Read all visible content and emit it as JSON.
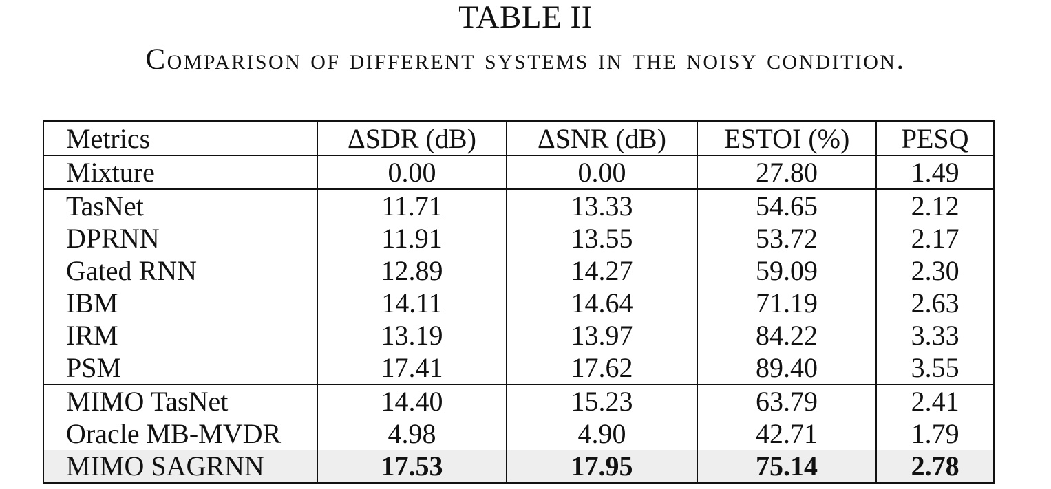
{
  "table_title": "TABLE II",
  "caption": "Comparison of different systems in the noisy condition.",
  "table": {
    "headers": [
      "Metrics",
      "ΔSDR (dB)",
      "ΔSNR (dB)",
      "ESTOI (%)",
      "PESQ"
    ],
    "rows": [
      {
        "name": "Mixture",
        "values": [
          "0.00",
          "0.00",
          "27.80",
          "1.49"
        ]
      },
      {
        "name": "TasNet",
        "values": [
          "11.71",
          "13.33",
          "54.65",
          "2.12"
        ]
      },
      {
        "name": "DPRNN",
        "values": [
          "11.91",
          "13.55",
          "53.72",
          "2.17"
        ]
      },
      {
        "name": "Gated RNN",
        "values": [
          "12.89",
          "14.27",
          "59.09",
          "2.30"
        ]
      },
      {
        "name": "IBM",
        "values": [
          "14.11",
          "14.64",
          "71.19",
          "2.63"
        ]
      },
      {
        "name": "IRM",
        "values": [
          "13.19",
          "13.97",
          "84.22",
          "3.33"
        ]
      },
      {
        "name": "PSM",
        "values": [
          "17.41",
          "17.62",
          "89.40",
          "3.55"
        ]
      },
      {
        "name": "MIMO TasNet",
        "values": [
          "14.40",
          "15.23",
          "63.79",
          "2.41"
        ]
      },
      {
        "name": "Oracle MB-MVDR",
        "values": [
          "4.98",
          "4.90",
          "42.71",
          "1.79"
        ]
      },
      {
        "name": "MIMO SAGRNN",
        "values": [
          "17.53",
          "17.95",
          "75.14",
          "2.78"
        ]
      }
    ]
  }
}
